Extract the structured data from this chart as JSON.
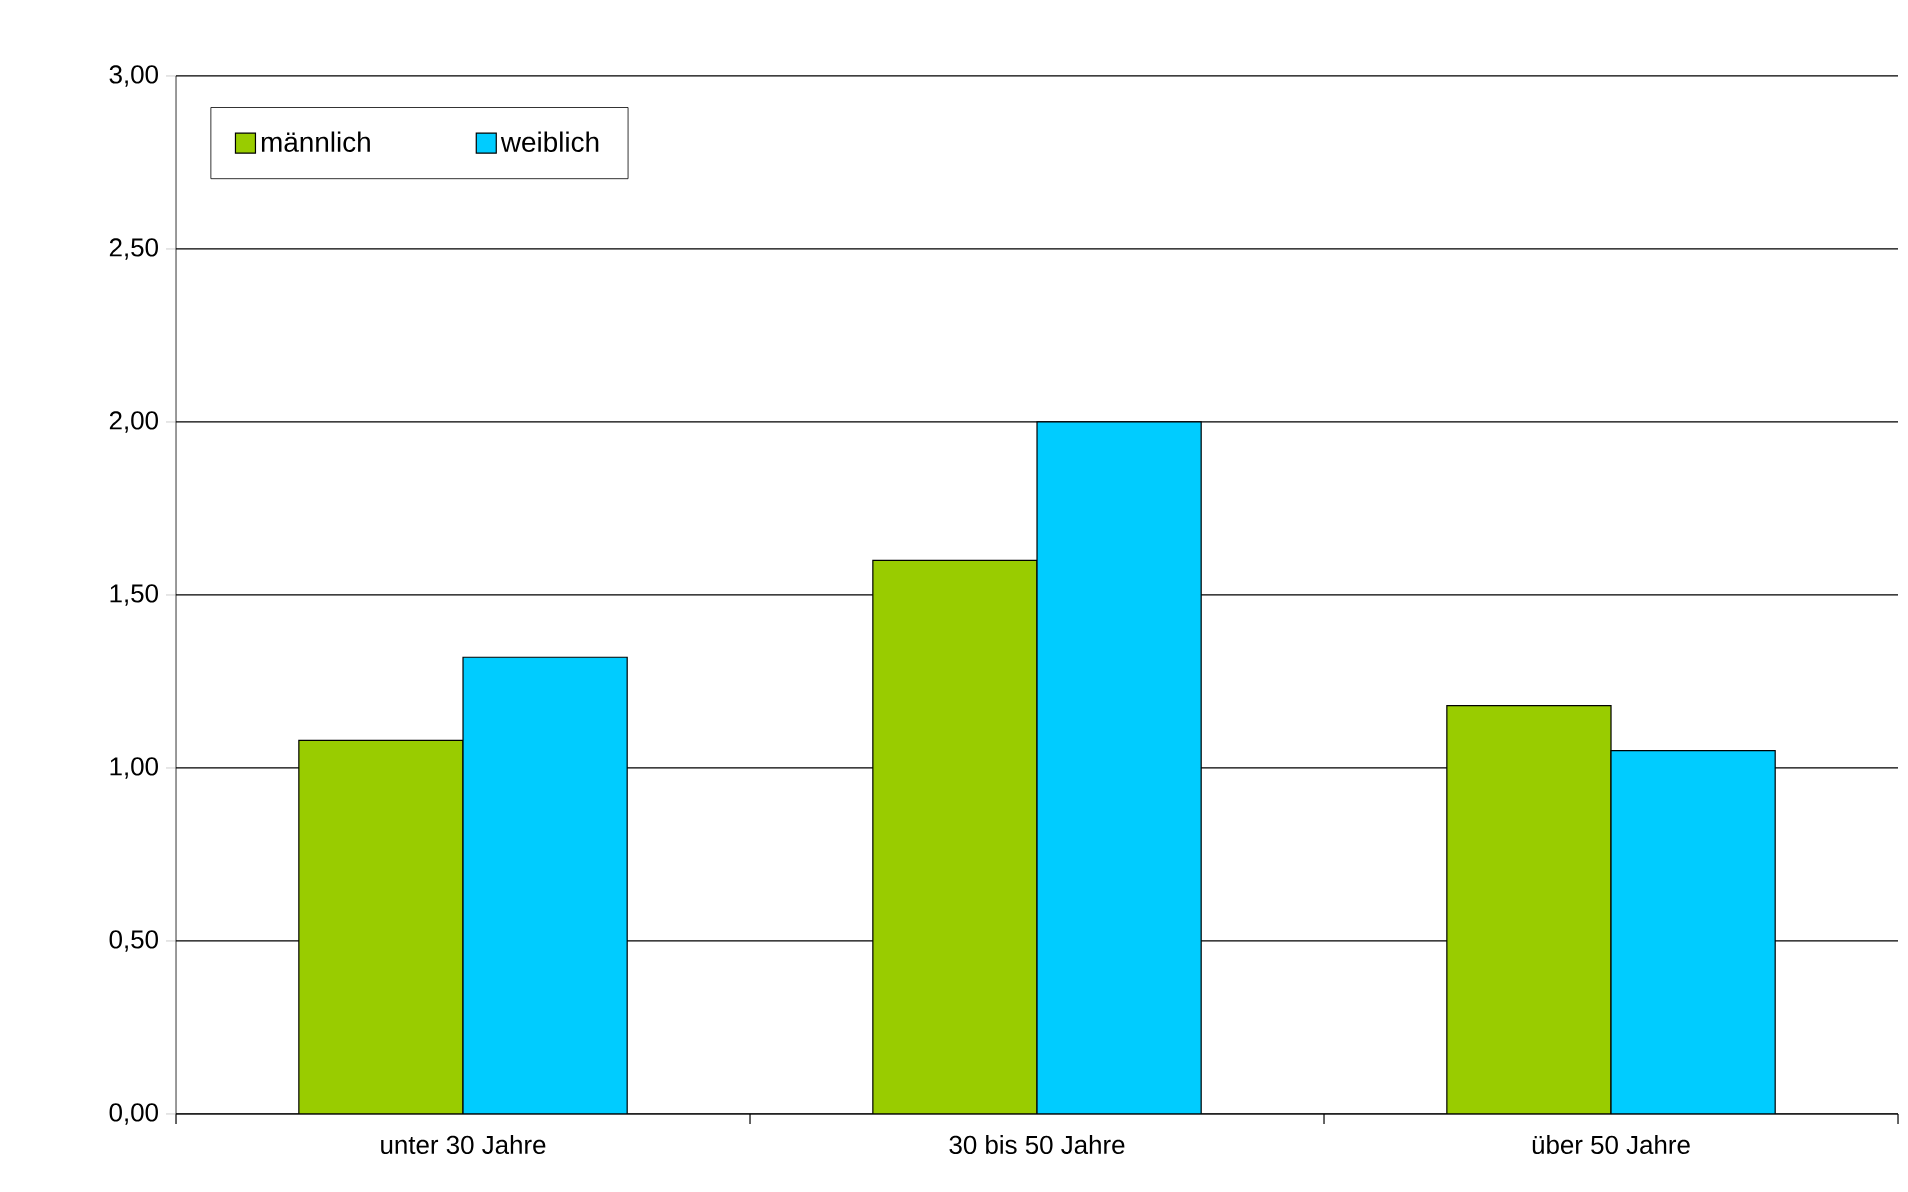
{
  "chart_data": {
    "type": "bar",
    "categories": [
      "unter 30 Jahre",
      "30 bis 50 Jahre",
      "über 50 Jahre"
    ],
    "series": [
      {
        "name": "männlich",
        "color": "#99cc00",
        "values": [
          1.08,
          1.6,
          1.18
        ]
      },
      {
        "name": "weiblich",
        "color": "#00ccff",
        "values": [
          1.32,
          2.0,
          1.05
        ]
      }
    ],
    "ylim": [
      0,
      3
    ],
    "yticks": [
      {
        "value": 0,
        "label": "0,00"
      },
      {
        "value": 0.5,
        "label": "0,50"
      },
      {
        "value": 1,
        "label": "1,00"
      },
      {
        "value": 1.5,
        "label": "1,50"
      },
      {
        "value": 2,
        "label": "2,00"
      },
      {
        "value": 2.5,
        "label": "2,50"
      },
      {
        "value": 3,
        "label": "3,00"
      }
    ],
    "grid": "y",
    "legend": "top left"
  }
}
